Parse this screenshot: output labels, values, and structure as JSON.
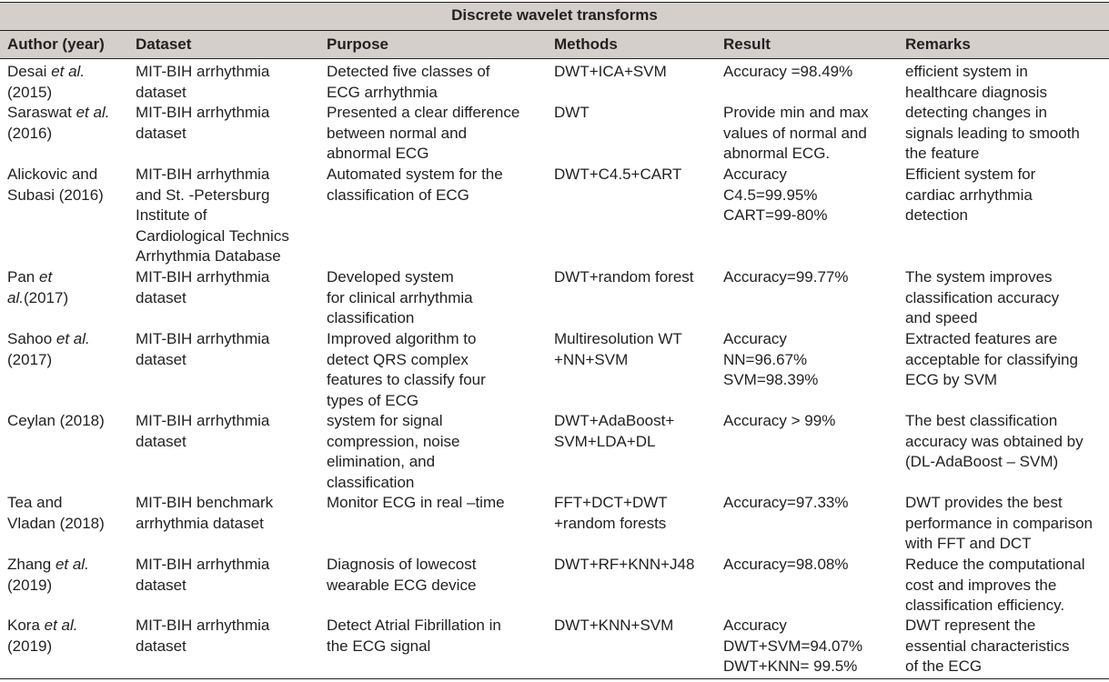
{
  "caption": "Discrete wavelet transforms",
  "columns": [
    "Author (year)",
    "Dataset",
    "Purpose",
    "Methods",
    "Result",
    "Remarks"
  ],
  "rows": [
    {
      "author": "Desai et al.\n(2015)",
      "dataset": "MIT-BIH arrhythmia\ndataset",
      "purpose": "Detected five classes of\nECG arrhythmia",
      "methods": "DWT+ICA+SVM",
      "result": "Accuracy =98.49%",
      "remarks": "efficient system in\nhealthcare diagnosis"
    },
    {
      "author": "Saraswat et al.\n(2016)",
      "dataset": "MIT-BIH arrhythmia\ndataset",
      "purpose": "Presented a clear difference\nbetween normal and\nabnormal ECG",
      "methods": "DWT",
      "result": "Provide min and max\nvalues of normal and\nabnormal ECG.",
      "remarks": "detecting changes in\nsignals leading to smooth\nthe feature"
    },
    {
      "author": "Alickovic and\nSubasi (2016)",
      "dataset": "MIT-BIH arrhythmia\nand St. -Petersburg\nInstitute of\nCardiological Technics\nArrhythmia Database",
      "purpose": "Automated system for the\nclassification of ECG",
      "methods": "DWT+C4.5+CART",
      "result": "Accuracy\nC4.5=99.95%\nCART=99-80%",
      "remarks": "Efficient system for\ncardiac arrhythmia\ndetection"
    },
    {
      "author": "Pan et\nal.(2017)",
      "dataset": "MIT-BIH arrhythmia\ndataset",
      "purpose": "Developed system\nfor clinical arrhythmia\nclassification",
      "methods": "DWT+random forest",
      "result": "Accuracy=99.77%",
      "remarks": "The system improves\nclassification accuracy\nand speed"
    },
    {
      "author": "Sahoo et al.\n(2017)",
      "dataset": "MIT-BIH arrhythmia\ndataset",
      "purpose": "Improved algorithm to\ndetect QRS complex\nfeatures to classify four\ntypes of ECG",
      "methods": "Multiresolution WT\n+NN+SVM",
      "result": "Accuracy\nNN=96.67%\nSVM=98.39%",
      "remarks": "Extracted features are\nacceptable for classifying\nECG by SVM"
    },
    {
      "author": "Ceylan (2018)",
      "dataset": "MIT-BIH arrhythmia\ndataset",
      "purpose": "system for signal\ncompression, noise\nelimination, and\nclassification",
      "methods": "DWT+AdaBoost+\nSVM+LDA+DL",
      "result": "Accuracy > 99%",
      "remarks": "The best classification\naccuracy was obtained by\n(DL-AdaBoost – SVM)"
    },
    {
      "author": "Tea and\nVladan (2018)",
      "dataset": "MIT-BIH benchmark\narrhythmia dataset",
      "purpose": "Monitor ECG in real –time",
      "methods": "FFT+DCT+DWT\n+random forests",
      "result": "Accuracy=97.33%",
      "remarks": "DWT provides the best\nperformance in comparison\nwith FFT and DCT"
    },
    {
      "author": "Zhang et al.\n(2019)",
      "dataset": "MIT-BIH arrhythmia\ndataset",
      "purpose": "Diagnosis of lowecost\nwearable ECG device",
      "methods": "DWT+RF+KNN+J48",
      "result": "Accuracy=98.08%",
      "remarks": "Reduce the computational\ncost and improves the\nclassification efficiency."
    },
    {
      "author": "Kora et al.\n(2019)",
      "dataset": "MIT-BIH arrhythmia\ndataset",
      "purpose": "Detect Atrial Fibrillation in\nthe ECG signal",
      "methods": "DWT+KNN+SVM",
      "result": "Accuracy\nDWT+SVM=94.07%\nDWT+KNN= 99.5%",
      "remarks": "DWT represent the\nessential characteristics\nof the ECG"
    }
  ]
}
